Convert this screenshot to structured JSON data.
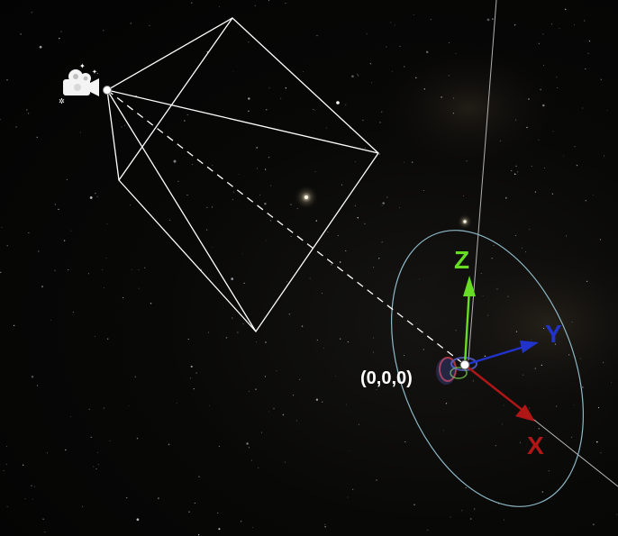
{
  "scene": {
    "origin_label": "(0,0,0)",
    "axes": {
      "x": {
        "label": "X",
        "color": "#b01616"
      },
      "y": {
        "label": "Y",
        "color": "#2233cc"
      },
      "z": {
        "label": "Z",
        "color": "#66dd22"
      }
    },
    "frustum_color": "#ffffff",
    "orbit_ring_color": "#8fb9c8",
    "camera_icon": "camera-icon",
    "background": "starfield"
  }
}
